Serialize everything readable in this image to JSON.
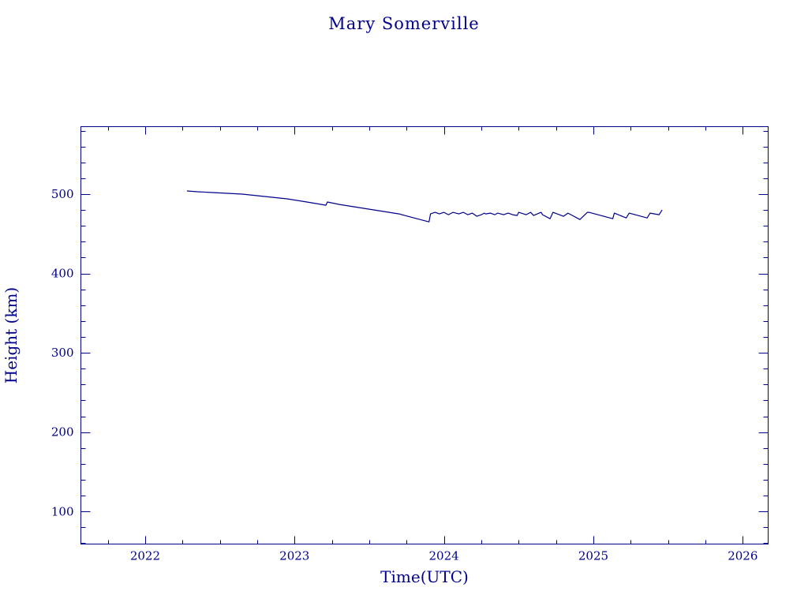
{
  "chart_data": {
    "type": "line",
    "title": "Mary Somerville",
    "xlabel": "Time(UTC)",
    "ylabel": "Height (km)",
    "xlim": [
      2021.57,
      2026.17
    ],
    "ylim": [
      59,
      585
    ],
    "x_ticks": [
      2022,
      2023,
      2024,
      2025,
      2026
    ],
    "x_tick_labels": [
      "2022",
      "2023",
      "2024",
      "2025",
      "2026"
    ],
    "y_ticks": [
      100,
      200,
      300,
      400,
      500
    ],
    "y_tick_labels": [
      "100",
      "200",
      "300",
      "400",
      "500"
    ],
    "x_minor_step": 0.25,
    "y_minor_step": 20,
    "grid": false,
    "legend": "none",
    "colors": {
      "axes": "#00008b",
      "series": "#00008b",
      "background": "#ffffff"
    },
    "series": [
      {
        "x": [
          2022.28,
          2022.35,
          2022.45,
          2022.55,
          2022.65,
          2022.75,
          2022.85,
          2022.95,
          2023.05,
          2023.15,
          2023.21,
          2023.22,
          2023.3,
          2023.4,
          2023.5,
          2023.6,
          2023.7,
          2023.8,
          2023.9,
          2023.91,
          2023.94,
          2023.97,
          2024.0,
          2024.03,
          2024.06,
          2024.1,
          2024.13,
          2024.16,
          2024.19,
          2024.22,
          2024.25,
          2024.27,
          2024.28,
          2024.31,
          2024.34,
          2024.36,
          2024.4,
          2024.43,
          2024.46,
          2024.49,
          2024.5,
          2024.55,
          2024.58,
          2024.6,
          2024.65,
          2024.66,
          2024.71,
          2024.73,
          2024.8,
          2024.83,
          2024.85,
          2024.91,
          2024.96,
          2024.97,
          2025.05,
          2025.13,
          2025.14,
          2025.22,
          2025.24,
          2025.36,
          2025.38,
          2025.44,
          2025.46
        ],
        "y": [
          504,
          503,
          502,
          501,
          500,
          498,
          496,
          494,
          491,
          488,
          486,
          490,
          487,
          484,
          481,
          478,
          475,
          470,
          465,
          475,
          477,
          475,
          477,
          474,
          477,
          475,
          477,
          474,
          476,
          472,
          474,
          476,
          475,
          476,
          474,
          476,
          474,
          476,
          474,
          473,
          477,
          474,
          477,
          473,
          477,
          474,
          469,
          477,
          472,
          476,
          474,
          468,
          477,
          477,
          473,
          469,
          476,
          470,
          476,
          470,
          476,
          474,
          480
        ]
      }
    ]
  }
}
